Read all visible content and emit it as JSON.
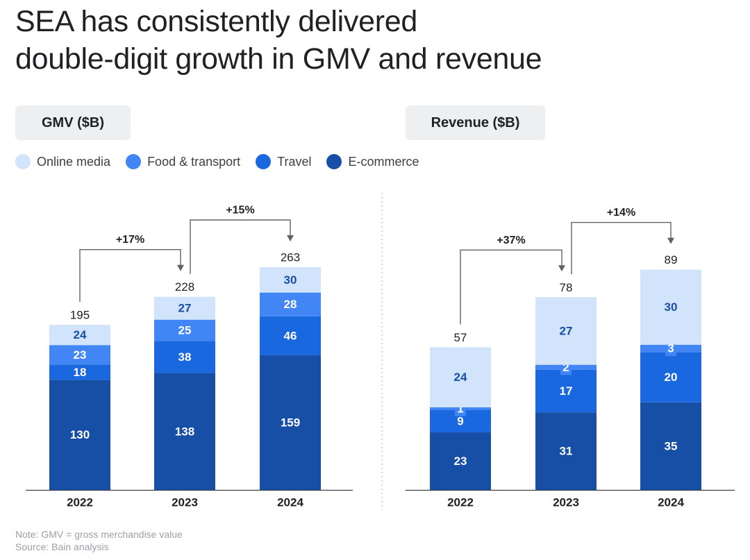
{
  "title": {
    "line1": "SEA has consistently delivered",
    "line2": "double-digit growth in GMV and revenue"
  },
  "colors": {
    "online_media": "#d2e3fc",
    "food_transport": "#4285f4",
    "travel": "#1a68e0",
    "ecommerce": "#174ea6",
    "divider": "#c4c7cc",
    "arrow": "#5f6368"
  },
  "legend": [
    {
      "label": "Online media",
      "color": "#d2e3fc"
    },
    {
      "label": "Food & transport",
      "color": "#4285f4"
    },
    {
      "label": "Travel",
      "color": "#1a68e0"
    },
    {
      "label": "E-commerce",
      "color": "#174ea6"
    }
  ],
  "chart_data": [
    {
      "type": "bar",
      "stacked": true,
      "title": "GMV ($B)",
      "categories": [
        "2022",
        "2023",
        "2024"
      ],
      "series": [
        {
          "name": "E-commerce",
          "values": [
            130,
            138,
            159
          ]
        },
        {
          "name": "Travel",
          "values": [
            18,
            38,
            46
          ]
        },
        {
          "name": "Food & transport",
          "values": [
            23,
            25,
            28
          ]
        },
        {
          "name": "Online media",
          "values": [
            24,
            27,
            30
          ]
        }
      ],
      "totals": [
        "195",
        "228",
        "263"
      ],
      "growth": [
        {
          "from": 0,
          "to": 1,
          "label": "+17%"
        },
        {
          "from": 1,
          "to": 2,
          "label": "+15%"
        }
      ],
      "ylim": [
        0,
        263
      ]
    },
    {
      "type": "bar",
      "stacked": true,
      "title": "Revenue ($B)",
      "categories": [
        "2022",
        "2023",
        "2024"
      ],
      "series": [
        {
          "name": "E-commerce",
          "values": [
            23,
            31,
            35
          ]
        },
        {
          "name": "Travel",
          "values": [
            9,
            17,
            20
          ]
        },
        {
          "name": "Food & transport",
          "values": [
            1,
            2,
            3
          ]
        },
        {
          "name": "Online media",
          "values": [
            24,
            27,
            30
          ]
        }
      ],
      "totals": [
        "57",
        "78",
        "89"
      ],
      "growth": [
        {
          "from": 0,
          "to": 1,
          "label": "+37%"
        },
        {
          "from": 1,
          "to": 2,
          "label": "+14%"
        }
      ],
      "ylim": [
        0,
        89
      ]
    }
  ],
  "note": {
    "line1": "Note: GMV = gross merchandise value",
    "line2": "Source: Bain analysis"
  }
}
